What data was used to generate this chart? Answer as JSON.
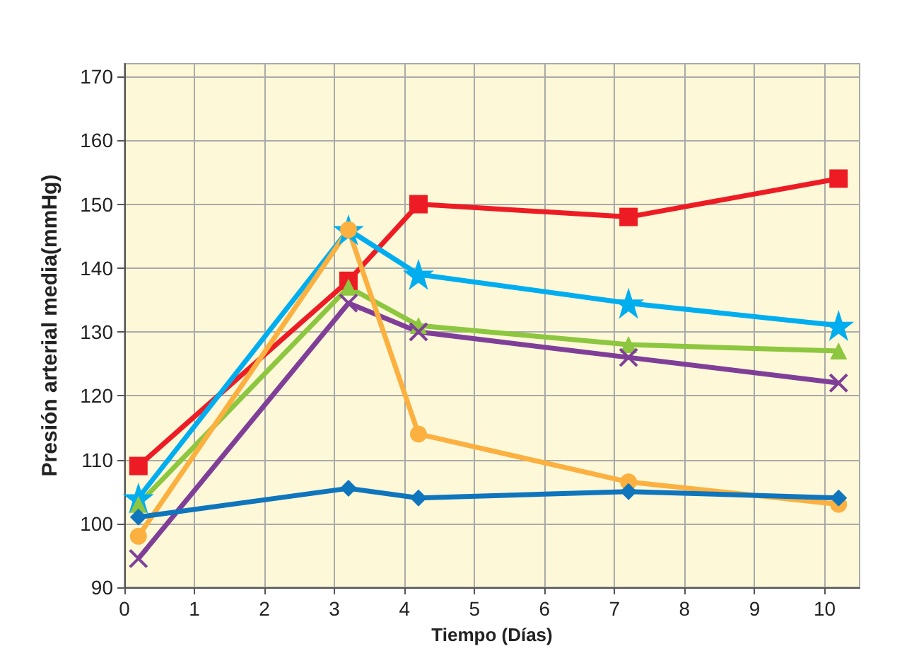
{
  "chart_data": {
    "type": "line",
    "xlabel": "Tiempo (Días)",
    "ylabel": "Presión arterial media(mmHg)",
    "x": [
      0.2,
      3.2,
      4.2,
      7.2,
      10.2
    ],
    "xlim": [
      0,
      10.5
    ],
    "xticks": [
      0,
      1,
      2,
      3,
      4,
      5,
      6,
      7,
      8,
      9,
      10
    ],
    "ylim": [
      90,
      172
    ],
    "yticks": [
      90,
      100,
      110,
      120,
      130,
      140,
      150,
      160,
      170
    ],
    "grid": true,
    "series": [
      {
        "color": "#ed1c24",
        "marker": "square",
        "values": [
          109,
          138,
          150,
          148,
          154
        ]
      },
      {
        "color": "#00aeef",
        "marker": "star",
        "values": [
          104,
          146,
          139,
          134.5,
          131
        ]
      },
      {
        "color": "#8dc63f",
        "marker": "triangle",
        "values": [
          103,
          137,
          131,
          128,
          127
        ]
      },
      {
        "color": "#7f3f98",
        "marker": "cross",
        "values": [
          94.5,
          134.5,
          130,
          126,
          122
        ]
      },
      {
        "color": "#fbb040",
        "marker": "circle",
        "values": [
          98,
          146,
          114,
          106.5,
          103
        ]
      },
      {
        "color": "#0f75bc",
        "marker": "diamond",
        "values": [
          101,
          105.5,
          104,
          105,
          104
        ]
      }
    ]
  }
}
